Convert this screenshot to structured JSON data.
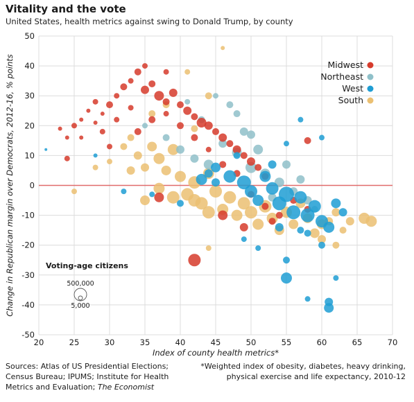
{
  "title": "Vitality and the vote",
  "subtitle": "United States, health metrics against swing to Donald Trump, by county",
  "sources": {
    "left_line1": "Sources: Atlas of US Presidential Elections;",
    "left_line2": "Census Bureau; IPUMS; Institute for Health",
    "left_line3": "Metrics and Evaluation; ",
    "left_publication": "The Economist",
    "right_line1": "*Weighted index of obesity, diabetes, heavy drinking,",
    "right_line2": "physical exercise and life expectancy, 2010-12"
  },
  "size_legend": {
    "title": "Voting-age citizens",
    "large_label": "500,000",
    "small_label": "5,000"
  },
  "colors": {
    "Midwest": "#d63b2c",
    "Northeast": "#8fc0c9",
    "West": "#1f9dd3",
    "South": "#ebc072",
    "zero_line": "#e06a6a",
    "grid": "#dcdcdc"
  },
  "chart_data": {
    "type": "scatter",
    "title": "Vitality and the vote",
    "xlabel": "Index of county health metrics*",
    "ylabel": "Change in Republican margin over Democrats, 2012-16, % points",
    "xlim": [
      20,
      70
    ],
    "ylim": [
      -50,
      50
    ],
    "xticks": [
      20,
      25,
      30,
      35,
      40,
      45,
      50,
      55,
      60,
      65,
      70
    ],
    "yticks": [
      -50,
      -40,
      -30,
      -20,
      -10,
      0,
      10,
      20,
      30,
      40,
      50
    ],
    "grid": true,
    "legend_position": "top-right",
    "series": [
      {
        "name": "Midwest",
        "color": "#d63b2c",
        "points": [
          [
            23,
            19,
            3
          ],
          [
            24,
            16,
            3
          ],
          [
            25,
            20,
            4
          ],
          [
            26,
            22,
            3
          ],
          [
            27,
            25,
            3
          ],
          [
            28,
            28,
            4
          ],
          [
            29,
            24,
            3
          ],
          [
            30,
            27,
            5
          ],
          [
            31,
            30,
            4
          ],
          [
            32,
            33,
            5
          ],
          [
            33,
            35,
            4
          ],
          [
            34,
            38,
            5
          ],
          [
            35,
            32,
            6
          ],
          [
            36,
            34,
            5
          ],
          [
            37,
            30,
            7
          ],
          [
            38,
            28,
            5
          ],
          [
            39,
            31,
            6
          ],
          [
            40,
            27,
            5
          ],
          [
            41,
            25,
            6
          ],
          [
            42,
            23,
            5
          ],
          [
            43,
            21,
            7
          ],
          [
            44,
            20,
            6
          ],
          [
            45,
            18,
            5
          ],
          [
            46,
            16,
            6
          ],
          [
            47,
            14,
            5
          ],
          [
            48,
            12,
            6
          ],
          [
            49,
            10,
            5
          ],
          [
            50,
            8,
            6
          ],
          [
            51,
            6,
            5
          ],
          [
            52,
            3,
            5
          ],
          [
            36,
            22,
            5
          ],
          [
            38,
            24,
            4
          ],
          [
            40,
            20,
            5
          ],
          [
            42,
            16,
            5
          ],
          [
            44,
            12,
            4
          ],
          [
            46,
            7,
            5
          ],
          [
            48,
            4,
            5
          ],
          [
            50,
            -3,
            5
          ],
          [
            52,
            -7,
            5
          ],
          [
            54,
            -10,
            5
          ],
          [
            56,
            -5,
            5
          ],
          [
            58,
            -8,
            5
          ],
          [
            42,
            -25,
            9
          ],
          [
            49,
            -14,
            6
          ],
          [
            46,
            -10,
            7
          ],
          [
            53,
            -12,
            5
          ],
          [
            37,
            -4,
            7
          ],
          [
            58,
            15,
            5
          ],
          [
            26,
            16,
            3
          ],
          [
            24,
            9,
            4
          ],
          [
            30,
            13,
            4
          ],
          [
            34,
            18,
            5
          ],
          [
            33,
            26,
            4
          ],
          [
            35,
            40,
            4
          ],
          [
            38,
            38,
            4
          ],
          [
            31,
            22,
            4
          ],
          [
            29,
            18,
            4
          ],
          [
            28,
            21,
            3
          ]
        ]
      },
      {
        "name": "Northeast",
        "color": "#8fc0c9",
        "points": [
          [
            35,
            20,
            4
          ],
          [
            38,
            16,
            5
          ],
          [
            40,
            12,
            6
          ],
          [
            42,
            9,
            6
          ],
          [
            44,
            7,
            7
          ],
          [
            46,
            14,
            6
          ],
          [
            48,
            11,
            7
          ],
          [
            50,
            6,
            8
          ],
          [
            52,
            4,
            7
          ],
          [
            54,
            1,
            7
          ],
          [
            56,
            -2,
            6
          ],
          [
            58,
            -5,
            6
          ],
          [
            47,
            27,
            5
          ],
          [
            45,
            30,
            4
          ],
          [
            49,
            18,
            6
          ],
          [
            51,
            12,
            7
          ],
          [
            43,
            22,
            5
          ],
          [
            55,
            7,
            6
          ],
          [
            57,
            2,
            6
          ],
          [
            59,
            -8,
            5
          ],
          [
            53,
            -4,
            6
          ],
          [
            41,
            28,
            4
          ],
          [
            48,
            24,
            5
          ],
          [
            50,
            17,
            6
          ]
        ]
      },
      {
        "name": "West",
        "color": "#1f9dd3",
        "points": [
          [
            21,
            12,
            2
          ],
          [
            28,
            10,
            3
          ],
          [
            32,
            -2,
            4
          ],
          [
            36,
            -3,
            4
          ],
          [
            40,
            -6,
            5
          ],
          [
            43,
            2,
            8
          ],
          [
            45,
            6,
            7
          ],
          [
            47,
            3,
            9
          ],
          [
            49,
            1,
            10
          ],
          [
            50,
            -2,
            9
          ],
          [
            51,
            -5,
            8
          ],
          [
            52,
            3,
            8
          ],
          [
            53,
            -1,
            9
          ],
          [
            54,
            -6,
            10
          ],
          [
            55,
            -3,
            11
          ],
          [
            56,
            -9,
            10
          ],
          [
            57,
            -4,
            9
          ],
          [
            58,
            -10,
            10
          ],
          [
            59,
            -7,
            9
          ],
          [
            60,
            -12,
            9
          ],
          [
            61,
            -14,
            8
          ],
          [
            62,
            -6,
            7
          ],
          [
            63,
            -9,
            6
          ],
          [
            55,
            -31,
            8
          ],
          [
            61,
            -41,
            7
          ],
          [
            61,
            -39,
            6
          ],
          [
            58,
            -38,
            4
          ],
          [
            62,
            -31,
            4
          ],
          [
            55,
            -25,
            5
          ],
          [
            54,
            -14,
            6
          ],
          [
            57,
            -15,
            5
          ],
          [
            49,
            -18,
            4
          ],
          [
            51,
            -21,
            4
          ],
          [
            58,
            -16,
            5
          ],
          [
            60,
            -20,
            5
          ],
          [
            45,
            1,
            6
          ],
          [
            48,
            10,
            5
          ],
          [
            53,
            7,
            6
          ],
          [
            55,
            14,
            4
          ],
          [
            57,
            22,
            4
          ],
          [
            60,
            16,
            4
          ],
          [
            44,
            4,
            6
          ]
        ]
      },
      {
        "name": "South",
        "color": "#ebc072",
        "points": [
          [
            25,
            -2,
            4
          ],
          [
            28,
            6,
            4
          ],
          [
            30,
            8,
            4
          ],
          [
            32,
            13,
            5
          ],
          [
            33,
            16,
            5
          ],
          [
            34,
            10,
            6
          ],
          [
            35,
            6,
            6
          ],
          [
            36,
            13,
            7
          ],
          [
            37,
            9,
            8
          ],
          [
            38,
            5,
            7
          ],
          [
            39,
            12,
            8
          ],
          [
            40,
            3,
            8
          ],
          [
            41,
            -3,
            9
          ],
          [
            42,
            1,
            9
          ],
          [
            43,
            -6,
            9
          ],
          [
            44,
            4,
            8
          ],
          [
            45,
            -2,
            9
          ],
          [
            46,
            -8,
            8
          ],
          [
            47,
            -4,
            9
          ],
          [
            48,
            -10,
            8
          ],
          [
            49,
            -6,
            9
          ],
          [
            50,
            -9,
            9
          ],
          [
            51,
            -13,
            8
          ],
          [
            52,
            -7,
            9
          ],
          [
            53,
            -11,
            8
          ],
          [
            54,
            -15,
            7
          ],
          [
            55,
            -9,
            8
          ],
          [
            56,
            -13,
            7
          ],
          [
            57,
            -6,
            7
          ],
          [
            58,
            -11,
            7
          ],
          [
            59,
            -16,
            7
          ],
          [
            60,
            -18,
            6
          ],
          [
            61,
            -12,
            6
          ],
          [
            62,
            -9,
            6
          ],
          [
            63,
            -15,
            5
          ],
          [
            64,
            -12,
            6
          ],
          [
            66,
            -11,
            8
          ],
          [
            67,
            -12,
            8
          ],
          [
            39,
            -4,
            9
          ],
          [
            42,
            -5,
            9
          ],
          [
            44,
            -9,
            9
          ],
          [
            37,
            -1,
            8
          ],
          [
            35,
            -5,
            7
          ],
          [
            46,
            46,
            3
          ],
          [
            44,
            30,
            5
          ],
          [
            41,
            38,
            4
          ],
          [
            42,
            19,
            5
          ],
          [
            36,
            24,
            5
          ],
          [
            38,
            27,
            5
          ],
          [
            33,
            5,
            6
          ],
          [
            44,
            -21,
            4
          ],
          [
            60,
            -13,
            7
          ],
          [
            62,
            -20,
            5
          ]
        ]
      }
    ],
    "bubble_size_unit": "voting-age citizens (relative)"
  },
  "legend": [
    "Midwest",
    "Northeast",
    "West",
    "South"
  ]
}
